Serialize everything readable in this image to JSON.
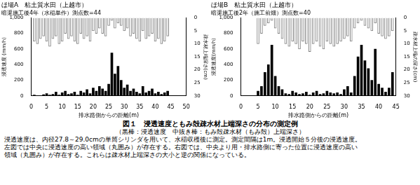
{
  "chart_data": [
    {
      "type": "bar",
      "title": "ほ場A　粘土質水田（上越市）",
      "subtitle": "暗渠施工後4年（水稲単作）測点数=44",
      "x_label": "排水路側からの距離(m)",
      "y_label": "浸透速度 (mm/h)",
      "y2_label": "疎水材上端深さ(cm)",
      "x": [
        1,
        2,
        3,
        4,
        5,
        6,
        7,
        8,
        9,
        10,
        11,
        12,
        13,
        14,
        15,
        16,
        17,
        18,
        19,
        20,
        21,
        22,
        23,
        24,
        25,
        26,
        27,
        28,
        29,
        30,
        31,
        32,
        33,
        34,
        35,
        36,
        37,
        38,
        39,
        40,
        41,
        42,
        43,
        44
      ],
      "xlim": [
        0,
        50
      ],
      "xticks": [
        0,
        5,
        10,
        15,
        20,
        25,
        30,
        35,
        40,
        45,
        50
      ],
      "ylim": [
        0,
        1000
      ],
      "yticks": [
        0,
        200,
        400,
        600,
        800,
        1000
      ],
      "y2lim": [
        30,
        0
      ],
      "y2ticks": [
        0,
        5,
        10,
        15,
        20,
        25,
        30
      ],
      "grid": false,
      "series": [
        {
          "color": "#000000",
          "values": [
            10,
            5,
            0,
            15,
            30,
            10,
            20,
            50,
            10,
            40,
            60,
            20,
            30,
            50,
            10,
            60,
            40,
            80,
            30,
            100,
            60,
            120,
            90,
            60,
            150,
            550,
            280,
            380,
            200,
            100,
            140,
            60,
            90,
            50,
            30,
            120,
            40,
            60,
            90,
            30,
            50,
            20,
            40,
            60
          ]
        },
        {
          "color": "#808080",
          "axis": "y2",
          "values": [
            9,
            10,
            8,
            7,
            9,
            11,
            8,
            7,
            10,
            9,
            6,
            8,
            7,
            9,
            10,
            6,
            8,
            7,
            9,
            5,
            6,
            4,
            6,
            7,
            3,
            1,
            4,
            2,
            3,
            5,
            4,
            7,
            6,
            8,
            9,
            5,
            8,
            7,
            6,
            9,
            8,
            10,
            9,
            7
          ]
        }
      ]
    },
    {
      "type": "bar",
      "title": "ほ場B　粘土質水田（上越市）",
      "subtitle": "暗渠施工後2年（施工前畑）測点数=40",
      "x_label": "排水路側からの距離(m)",
      "y_label": "浸透速度(mm/h)",
      "y2_label": "疎水材上端の深さ(cm)",
      "x": [
        5,
        6,
        7,
        8,
        9,
        10,
        11,
        12,
        13,
        14,
        15,
        16,
        17,
        18,
        19,
        20,
        21,
        22,
        23,
        24,
        25,
        26,
        27,
        28,
        29,
        30,
        31,
        32,
        33,
        34,
        35,
        36,
        37,
        38,
        39,
        40,
        41,
        42,
        43,
        44
      ],
      "xlim": [
        0,
        45
      ],
      "xticks": [
        0,
        5,
        10,
        15,
        20,
        25,
        30,
        35,
        40,
        45
      ],
      "ylim": [
        0,
        1000
      ],
      "yticks": [
        0,
        200,
        400,
        600,
        800,
        1000
      ],
      "y2lim": [
        30,
        0
      ],
      "y2ticks": [
        0,
        5,
        10,
        15,
        20,
        25,
        30
      ],
      "grid": false,
      "series": [
        {
          "color": "#000000",
          "values": [
            60,
            120,
            300,
            400,
            650,
            250,
            120,
            80,
            30,
            20,
            60,
            40,
            20,
            30,
            50,
            10,
            40,
            60,
            20,
            30,
            60,
            40,
            30,
            40,
            20,
            80,
            120,
            40,
            250,
            500,
            650,
            450,
            350,
            200,
            600,
            150,
            100,
            50,
            100,
            300
          ]
        },
        {
          "color": "#808080",
          "axis": "y2",
          "values": [
            10,
            6,
            3,
            2,
            1,
            4,
            6,
            8,
            10,
            11,
            9,
            10,
            12,
            9,
            10,
            13,
            10,
            9,
            11,
            12,
            9,
            10,
            11,
            10,
            9,
            8,
            7,
            9,
            4,
            2,
            1,
            3,
            4,
            5,
            2,
            6,
            7,
            8,
            7,
            5
          ]
        }
      ]
    }
  ],
  "caption": {
    "title": "図１　浸透速度ともみ殻疎水材上端深さの分布の測定例",
    "note": "（黒棒：浸透速度　中抜き棒：もみ殻疎水材（もみ殻）上端深さ）",
    "text": [
      "浸透速度は、内径27.8～29.0cmの単筒シリンダを用いて、水稲収穫後に測定。測定間隔は1m。浸透開始５分後の浸透速度。",
      "左図では中央に浸透速度の高い領域（丸囲み）が存在する。右図では、中央より用・排水路側に寄った位置に浸透速度の高い",
      "領域（丸囲み）が存在する。これらは疎水材上端深さの大小と逆の関係になっている。"
    ]
  }
}
